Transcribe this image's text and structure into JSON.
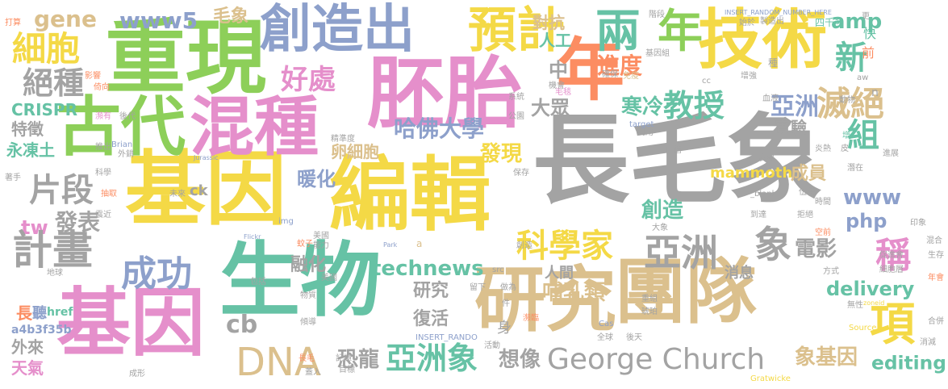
{
  "palette": {
    "gray": "#a3a3a3",
    "green": "#8dcf59",
    "pink": "#e58fcb",
    "yellow": "#f4d946",
    "tan": "#dbc08d",
    "blue": "#8da0cb",
    "teal": "#66c2a5",
    "orange": "#fc8d62"
  },
  "words": [
    {
      "text": "長毛象",
      "color": "gray"
    },
    {
      "text": "重現",
      "color": "green"
    },
    {
      "text": "基因",
      "color": "yellow"
    },
    {
      "text": "編輯",
      "color": "yellow"
    },
    {
      "text": "胚胎",
      "color": "pink"
    },
    {
      "text": "古代",
      "color": "green"
    },
    {
      "text": "混種",
      "color": "pink"
    },
    {
      "text": "基因",
      "color": "pink"
    },
    {
      "text": "生物",
      "color": "teal"
    },
    {
      "text": "研究",
      "color": "tan"
    },
    {
      "text": "團隊",
      "color": "tan"
    },
    {
      "text": "技術",
      "color": "yellow"
    },
    {
      "text": "創造出",
      "color": "blue"
    },
    {
      "text": "預計",
      "color": "yellow"
    },
    {
      "text": "年",
      "color": "orange"
    },
    {
      "text": "年",
      "color": "green"
    },
    {
      "text": "兩",
      "color": "teal"
    },
    {
      "text": "細胞",
      "color": "yellow"
    },
    {
      "text": "絕種",
      "color": "gray"
    },
    {
      "text": "gene",
      "color": "tan"
    },
    {
      "text": "www5",
      "color": "blue"
    },
    {
      "text": "毛象",
      "color": "tan"
    },
    {
      "text": "好處",
      "color": "pink"
    },
    {
      "text": "教授",
      "color": "teal"
    },
    {
      "text": "新",
      "color": "teal"
    },
    {
      "text": "滅絕",
      "color": "tan"
    },
    {
      "text": "組",
      "color": "teal"
    },
    {
      "text": "amp",
      "color": "teal"
    },
    {
      "text": "對抗",
      "color": "tan"
    },
    {
      "text": "人工",
      "color": "teal"
    },
    {
      "text": "中",
      "color": "gray"
    },
    {
      "text": "進度",
      "color": "orange"
    },
    {
      "text": "大眾",
      "color": "gray"
    },
    {
      "text": "亞洲",
      "color": "blue"
    },
    {
      "text": "寒冷",
      "color": "teal"
    },
    {
      "text": "CRISPR",
      "color": "teal"
    },
    {
      "text": "特徵",
      "color": "gray"
    },
    {
      "text": "永凍土",
      "color": "teal"
    },
    {
      "text": "卵細胞",
      "color": "tan"
    },
    {
      "text": "哈佛大學",
      "color": "blue"
    },
    {
      "text": "發現",
      "color": "yellow"
    },
    {
      "text": "實驗",
      "color": "gray"
    },
    {
      "text": "成員",
      "color": "tan"
    },
    {
      "text": "www",
      "color": "blue"
    },
    {
      "text": "片段",
      "color": "gray"
    },
    {
      "text": "暖化",
      "color": "blue"
    },
    {
      "text": "mammoth",
      "color": "yellow"
    },
    {
      "text": "ck",
      "color": "gray"
    },
    {
      "text": "創造",
      "color": "teal"
    },
    {
      "text": "tw",
      "color": "pink"
    },
    {
      "text": "發表",
      "color": "gray"
    },
    {
      "text": "計畫",
      "color": "gray"
    },
    {
      "text": "成功",
      "color": "blue"
    },
    {
      "text": "科學家",
      "color": "yellow"
    },
    {
      "text": "亞洲",
      "color": "gray"
    },
    {
      "text": "象",
      "color": "gray"
    },
    {
      "text": "php",
      "color": "blue"
    },
    {
      "text": "電影",
      "color": "gray"
    },
    {
      "text": "稱",
      "color": "pink"
    },
    {
      "text": "融化",
      "color": "gray"
    },
    {
      "text": "technews",
      "color": "teal"
    },
    {
      "text": "研究",
      "color": "gray"
    },
    {
      "text": "消息",
      "color": "gray"
    },
    {
      "text": "人間",
      "color": "gray"
    },
    {
      "text": "delivery",
      "color": "teal"
    },
    {
      "text": "哺乳類",
      "color": "tan"
    },
    {
      "text": "cb",
      "color": "gray"
    },
    {
      "text": "復活",
      "color": "gray"
    },
    {
      "text": "長",
      "color": "orange"
    },
    {
      "text": "a4b3f35b",
      "color": "blue"
    },
    {
      "text": "外來",
      "color": "gray"
    },
    {
      "text": "天氣",
      "color": "pink"
    },
    {
      "text": "DNA",
      "color": "tan"
    },
    {
      "text": "恐龍",
      "color": "gray"
    },
    {
      "text": "亞洲象",
      "color": "teal"
    },
    {
      "text": "想像",
      "color": "gray"
    },
    {
      "text": "George Church",
      "color": "gray"
    },
    {
      "text": "象基因",
      "color": "tan"
    },
    {
      "text": "editing",
      "color": "teal"
    },
    {
      "text": "項",
      "color": "yellow"
    },
    {
      "text": "聽",
      "color": "blue"
    },
    {
      "text": "href",
      "color": "teal"
    },
    {
      "text": "INSERT_RANDOM_NUMBER_HERE",
      "color": "blue"
    },
    {
      "text": "INSERT_RANDO",
      "color": "blue"
    },
    {
      "text": "Jurassic",
      "color": "blue"
    },
    {
      "text": "Park",
      "color": "blue"
    },
    {
      "text": "Flickr",
      "color": "blue"
    },
    {
      "text": "target",
      "color": "blue"
    },
    {
      "text": "Brian",
      "color": "blue"
    },
    {
      "text": "Gratwicke",
      "color": "yellow"
    },
    {
      "text": "Source",
      "color": "yellow"
    },
    {
      "text": "zoneid",
      "color": "yellow"
    },
    {
      "text": "src",
      "color": "gray"
    },
    {
      "text": "img",
      "color": "blue"
    },
    {
      "text": "cc",
      "color": "gray"
    },
    {
      "text": "aw",
      "color": "gray"
    },
    {
      "text": "Cas",
      "color": "blue"
    },
    {
      "text": "n",
      "color": "gray"
    },
    {
      "text": "a",
      "color": "tan"
    },
    {
      "text": "_blank",
      "color": "gray"
    },
    {
      "text": "四千多",
      "color": "teal"
    },
    {
      "text": "製造出",
      "color": "gray"
    },
    {
      "text": "基因組",
      "color": "gray"
    },
    {
      "text": "系統",
      "color": "gray"
    },
    {
      "text": "毛毯",
      "color": "pink"
    },
    {
      "text": "免疫",
      "color": "tan"
    },
    {
      "text": "精準度",
      "color": "gray"
    },
    {
      "text": "血液",
      "color": "gray"
    },
    {
      "text": "動物",
      "color": "gray"
    },
    {
      "text": "大象",
      "color": "gray"
    },
    {
      "text": "皮膚",
      "color": "gray"
    },
    {
      "text": "自信",
      "color": "gray"
    },
    {
      "text": "公園",
      "color": "gray"
    },
    {
      "text": "利用",
      "color": "gray"
    },
    {
      "text": "潛在",
      "color": "gray"
    },
    {
      "text": "未來",
      "color": "gray"
    },
    {
      "text": "科學",
      "color": "gray"
    },
    {
      "text": "蚊子",
      "color": "orange"
    },
    {
      "text": "美國",
      "color": "gray"
    },
    {
      "text": "能力",
      "color": "gray"
    },
    {
      "text": "包括",
      "color": "gray"
    },
    {
      "text": "地球",
      "color": "gray"
    },
    {
      "text": "物質",
      "color": "gray"
    },
    {
      "text": "傾導",
      "color": "gray"
    },
    {
      "text": "全球",
      "color": "gray"
    },
    {
      "text": "後天",
      "color": "gray"
    },
    {
      "text": "目標",
      "color": "gray"
    },
    {
      "text": "活動",
      "color": "gray"
    },
    {
      "text": "前",
      "color": "orange"
    },
    {
      "text": "快",
      "color": "teal"
    },
    {
      "text": "種",
      "color": "gray"
    },
    {
      "text": "更",
      "color": "gray"
    },
    {
      "text": "始於",
      "color": "gray"
    },
    {
      "text": "階段",
      "color": "gray"
    },
    {
      "text": "打算",
      "color": "orange"
    },
    {
      "text": "影響",
      "color": "orange"
    },
    {
      "text": "倚向",
      "color": "orange"
    },
    {
      "text": "瀕有",
      "color": "pink"
    },
    {
      "text": "後代",
      "color": "gray"
    },
    {
      "text": "推出",
      "color": "gray"
    },
    {
      "text": "外銷",
      "color": "gray"
    },
    {
      "text": "抽取",
      "color": "orange"
    },
    {
      "text": "著手",
      "color": "gray"
    },
    {
      "text": "震近",
      "color": "gray"
    },
    {
      "text": "成形",
      "color": "gray"
    },
    {
      "text": "蓋入",
      "color": "gray"
    },
    {
      "text": "長毛",
      "color": "orange"
    },
    {
      "text": "炎熱",
      "color": "gray"
    },
    {
      "text": "進展",
      "color": "gray"
    },
    {
      "text": "消減",
      "color": "gray"
    },
    {
      "text": "合併",
      "color": "gray"
    },
    {
      "text": "年會",
      "color": "orange"
    },
    {
      "text": "混合",
      "color": "gray"
    },
    {
      "text": "生存",
      "color": "gray"
    },
    {
      "text": "印象",
      "color": "gray"
    },
    {
      "text": "促進會",
      "color": "gray"
    },
    {
      "text": "細胞層",
      "color": "gray"
    },
    {
      "text": "方式",
      "color": "gray"
    },
    {
      "text": "無性",
      "color": "gray"
    },
    {
      "text": "保存",
      "color": "gray"
    },
    {
      "text": "美國",
      "color": "gray"
    },
    {
      "text": "留下",
      "color": "gray"
    },
    {
      "text": "做為",
      "color": "gray"
    },
    {
      "text": "瀕臨",
      "color": "orange"
    },
    {
      "text": "身",
      "color": "gray"
    },
    {
      "text": "件",
      "color": "gray"
    },
    {
      "text": "記憶",
      "color": "gray"
    },
    {
      "text": "創造",
      "color": "gray"
    },
    {
      "text": "重組",
      "color": "gray"
    },
    {
      "text": "琥珀",
      "color": "gray"
    },
    {
      "text": "空前",
      "color": "orange"
    },
    {
      "text": "時間",
      "color": "gray"
    },
    {
      "text": "拒絕",
      "color": "gray"
    },
    {
      "text": "伍德",
      "color": "gray"
    },
    {
      "text": "增",
      "color": "teal"
    },
    {
      "text": "皮",
      "color": "gray"
    },
    {
      "text": "增強",
      "color": "gray"
    },
    {
      "text": "確保",
      "color": "gray"
    },
    {
      "text": "機會",
      "color": "gray"
    },
    {
      "text": "到達",
      "color": "gray"
    },
    {
      "text": "實現",
      "color": "gray"
    }
  ]
}
